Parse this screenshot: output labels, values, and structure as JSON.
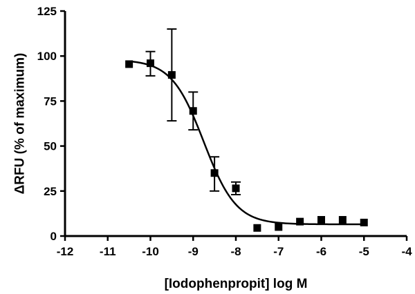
{
  "chart_data": {
    "type": "scatter",
    "xlabel": "[Iodophenpropit] log M",
    "ylabel": "ΔRFU (% of maximum)",
    "xlim": [
      -12,
      -4
    ],
    "ylim": [
      0,
      125
    ],
    "xticks": [
      -12,
      -11,
      -10,
      -9,
      -8,
      -7,
      -6,
      -5,
      -4
    ],
    "yticks": [
      0,
      25,
      50,
      75,
      100,
      125
    ],
    "xtick_labels": [
      "-12",
      "-11",
      "-10",
      "-9",
      "-8",
      "-7",
      "-6",
      "-5",
      "-4"
    ],
    "ytick_labels": [
      "0",
      "25",
      "50",
      "75",
      "100",
      "125"
    ],
    "grid": false,
    "series": [
      {
        "marker": "square",
        "color": "#000000",
        "x": [
          -10.5,
          -10.0,
          -9.5,
          -9.0,
          -8.5,
          -8.0,
          -7.5,
          -7.0,
          -6.5,
          -6.0,
          -5.5,
          -5.0
        ],
        "y": [
          95.5,
          96,
          89.5,
          69.5,
          35,
          26.5,
          4.5,
          5,
          8,
          9,
          9,
          7.5
        ],
        "err_low": [
          null,
          89,
          64,
          59,
          25,
          23,
          null,
          null,
          null,
          null,
          null,
          null
        ],
        "err_high": [
          null,
          102.5,
          115,
          80,
          44,
          30,
          null,
          null,
          null,
          null,
          null,
          null
        ]
      }
    ],
    "fit": {
      "type": "sigmoid",
      "x_range": [
        -10.5,
        -5.0
      ],
      "top": 98,
      "bottom": 6.5,
      "log_ic50": -8.75,
      "hill_slope": -1.15
    }
  }
}
